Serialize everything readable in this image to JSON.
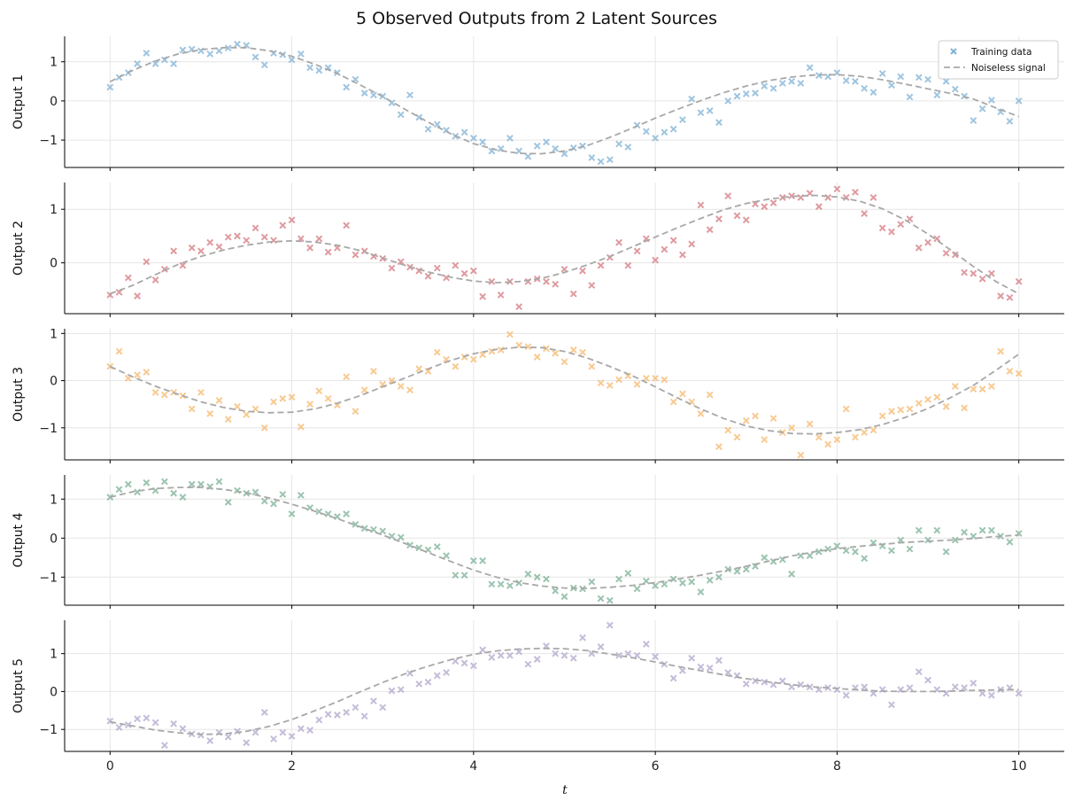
{
  "chart_data": {
    "type": "scatter",
    "title": "5 Observed Outputs from 2 Latent Sources",
    "xlabel": "t",
    "xlim": [
      -0.5,
      10.5
    ],
    "xticks": [
      0,
      2,
      4,
      6,
      8,
      10
    ],
    "grid": true,
    "legend": {
      "location": "top-right",
      "entries": [
        "Training data",
        "Noiseless signal"
      ]
    },
    "x_train": [
      0,
      0.1,
      0.2,
      0.3,
      0.4,
      0.5,
      0.6,
      0.7,
      0.8,
      0.9,
      1,
      1.1,
      1.2,
      1.3,
      1.4,
      1.5,
      1.6,
      1.7,
      1.8,
      1.9,
      2,
      2.1,
      2.2,
      2.3,
      2.4,
      2.5,
      2.6,
      2.7,
      2.8,
      2.9,
      3,
      3.1,
      3.2,
      3.3,
      3.4,
      3.5,
      3.6,
      3.7,
      3.8,
      3.9,
      4,
      4.1,
      4.2,
      4.3,
      4.4,
      4.5,
      4.6,
      4.7,
      4.8,
      4.9,
      5,
      5.1,
      5.2,
      5.3,
      5.4,
      5.5,
      5.6,
      5.7,
      5.8,
      5.9,
      6,
      6.1,
      6.2,
      6.3,
      6.4,
      6.5,
      6.6,
      6.7,
      6.8,
      6.9,
      7,
      7.1,
      7.2,
      7.3,
      7.4,
      7.5,
      7.6,
      7.7,
      7.8,
      7.9,
      8,
      8.1,
      8.2,
      8.3,
      8.4,
      8.5,
      8.6,
      8.7,
      8.8,
      8.9,
      9,
      9.1,
      9.2,
      9.3,
      9.4,
      9.5,
      9.6,
      9.7,
      9.8,
      9.9,
      10
    ],
    "x_signal": [
      0,
      0.25,
      0.5,
      0.75,
      1,
      1.25,
      1.5,
      1.75,
      2,
      2.25,
      2.5,
      2.75,
      3,
      3.25,
      3.5,
      3.75,
      4,
      4.25,
      4.5,
      4.75,
      5,
      5.25,
      5.5,
      5.75,
      6,
      6.25,
      6.5,
      6.75,
      7,
      7.25,
      7.5,
      7.75,
      8,
      8.25,
      8.5,
      8.75,
      9,
      9.25,
      9.5,
      9.75,
      10
    ],
    "series": [
      {
        "name": "Output 1",
        "color": "#7fb2d5",
        "ylim": [
          -1.7,
          1.65
        ],
        "yticks": [
          -1,
          0,
          1
        ],
        "observed": [
          0.35,
          0.6,
          0.72,
          0.95,
          1.22,
          0.95,
          1.05,
          0.95,
          1.3,
          1.32,
          1.28,
          1.2,
          1.28,
          1.35,
          1.45,
          1.42,
          1.12,
          0.92,
          1.22,
          1.18,
          1.05,
          1.2,
          0.85,
          0.78,
          0.85,
          0.72,
          0.35,
          0.55,
          0.2,
          0.15,
          0.12,
          -0.05,
          -0.35,
          0.15,
          -0.42,
          -0.72,
          -0.6,
          -0.75,
          -0.9,
          -0.8,
          -0.95,
          -1.05,
          -1.28,
          -1.22,
          -0.95,
          -1.28,
          -1.42,
          -1.15,
          -1.05,
          -1.22,
          -1.35,
          -1.2,
          -1.15,
          -1.45,
          -1.55,
          -1.5,
          -1.1,
          -1.18,
          -0.62,
          -0.78,
          -0.95,
          -0.8,
          -0.72,
          -0.48,
          0.05,
          -0.3,
          -0.25,
          -0.55,
          0,
          0.12,
          0.18,
          0.2,
          0.38,
          0.32,
          0.45,
          0.5,
          0.45,
          0.85,
          0.65,
          0.62,
          0.72,
          0.52,
          0.5,
          0.32,
          0.22,
          0.7,
          0.4,
          0.62,
          0.1,
          0.6,
          0.55,
          0.15,
          0.5,
          0.3,
          0.12,
          -0.5,
          -0.2,
          0.02,
          -0.28,
          -0.52,
          0
        ],
        "signal": [
          0.49,
          0.78,
          1.02,
          1.2,
          1.31,
          1.36,
          1.36,
          1.28,
          1.14,
          0.94,
          0.7,
          0.41,
          0.11,
          -0.22,
          -0.54,
          -0.84,
          -1.09,
          -1.25,
          -1.34,
          -1.35,
          -1.28,
          -1.14,
          -0.93,
          -0.69,
          -0.44,
          -0.21,
          0.01,
          0.21,
          0.38,
          0.52,
          0.61,
          0.66,
          0.67,
          0.63,
          0.54,
          0.43,
          0.31,
          0.19,
          0.05,
          -0.18,
          -0.4
        ]
      },
      {
        "name": "Output 2",
        "color": "#d47a80",
        "ylim": [
          -0.95,
          1.5
        ],
        "yticks": [
          0,
          1
        ],
        "observed": [
          -0.6,
          -0.55,
          -0.28,
          -0.62,
          0.02,
          -0.32,
          -0.12,
          0.22,
          -0.05,
          0.28,
          0.22,
          0.38,
          0.3,
          0.48,
          0.5,
          0.42,
          0.65,
          0.48,
          0.42,
          0.7,
          0.8,
          0.45,
          0.28,
          0.45,
          0.2,
          0.28,
          0.7,
          0.15,
          0.22,
          0.12,
          0.08,
          -0.1,
          0.02,
          -0.08,
          -0.15,
          -0.25,
          -0.1,
          -0.28,
          -0.05,
          -0.2,
          -0.15,
          -0.63,
          -0.35,
          -0.6,
          -0.35,
          -0.82,
          -0.35,
          -0.3,
          -0.35,
          -0.4,
          -0.12,
          -0.58,
          -0.15,
          -0.42,
          -0.05,
          0.1,
          0.38,
          -0.05,
          0.22,
          0.45,
          0.05,
          0.25,
          0.42,
          0.15,
          0.35,
          1.08,
          0.62,
          0.82,
          1.25,
          0.88,
          0.8,
          1.1,
          1.05,
          1.12,
          1.22,
          1.25,
          1.22,
          1.3,
          1.05,
          1.22,
          1.38,
          1.22,
          1.32,
          0.92,
          1.22,
          0.65,
          0.58,
          0.72,
          0.82,
          0.28,
          0.38,
          0.45,
          0.18,
          0.15,
          -0.18,
          -0.2,
          -0.3,
          -0.2,
          -0.62,
          -0.65,
          -0.35
        ],
        "signal": [
          -0.58,
          -0.42,
          -0.22,
          -0.03,
          0.12,
          0.24,
          0.33,
          0.39,
          0.41,
          0.39,
          0.33,
          0.23,
          0.09,
          -0.05,
          -0.17,
          -0.27,
          -0.34,
          -0.37,
          -0.35,
          -0.29,
          -0.18,
          -0.04,
          0.12,
          0.3,
          0.48,
          0.66,
          0.83,
          0.99,
          1.11,
          1.19,
          1.24,
          1.26,
          1.23,
          1.15,
          1.01,
          0.8,
          0.54,
          0.24,
          -0.07,
          -0.35,
          -0.58
        ]
      },
      {
        "name": "Output 3",
        "color": "#f5b86e",
        "ylim": [
          -1.68,
          1.1
        ],
        "yticks": [
          -1,
          0,
          1
        ],
        "observed": [
          0.3,
          0.62,
          0.05,
          0.12,
          0.18,
          -0.25,
          -0.3,
          -0.25,
          -0.32,
          -0.6,
          -0.25,
          -0.7,
          -0.42,
          -0.82,
          -0.55,
          -0.72,
          -0.6,
          -1.0,
          -0.45,
          -0.38,
          -0.35,
          -0.98,
          -0.5,
          -0.22,
          -0.38,
          -0.52,
          0.08,
          -0.65,
          -0.2,
          0.2,
          -0.08,
          0,
          -0.12,
          -0.2,
          0.25,
          0.2,
          0.6,
          0.45,
          0.3,
          0.5,
          0.45,
          0.55,
          0.62,
          0.65,
          0.98,
          0.75,
          0.72,
          0.5,
          0.68,
          0.58,
          0.4,
          0.65,
          0.6,
          0.3,
          -0.05,
          -0.1,
          0.02,
          0.1,
          -0.08,
          0.05,
          0.05,
          0.02,
          -0.45,
          -0.28,
          -0.45,
          -0.7,
          -0.3,
          -1.4,
          -1.05,
          -1.2,
          -0.85,
          -0.75,
          -1.25,
          -0.8,
          -1.1,
          -1.0,
          -1.58,
          -0.92,
          -1.2,
          -1.35,
          -1.25,
          -0.6,
          -1.2,
          -1.1,
          -1.05,
          -0.75,
          -0.65,
          -0.62,
          -0.6,
          -0.48,
          -0.4,
          -0.35,
          -0.55,
          -0.12,
          -0.58,
          -0.18,
          -0.18,
          -0.12,
          0.62,
          0.2,
          0.15
        ],
        "signal": [
          0.3,
          0.08,
          -0.12,
          -0.29,
          -0.45,
          -0.57,
          -0.65,
          -0.68,
          -0.67,
          -0.6,
          -0.48,
          -0.32,
          -0.13,
          0.06,
          0.25,
          0.43,
          0.57,
          0.66,
          0.71,
          0.7,
          0.62,
          0.48,
          0.3,
          0.1,
          -0.13,
          -0.37,
          -0.6,
          -0.8,
          -0.96,
          -1.06,
          -1.12,
          -1.13,
          -1.1,
          -1.04,
          -0.93,
          -0.78,
          -0.59,
          -0.36,
          -0.1,
          0.22,
          0.56
        ]
      },
      {
        "name": "Output 4",
        "color": "#7bb094",
        "ylim": [
          -1.72,
          1.62
        ],
        "yticks": [
          -1,
          0,
          1
        ],
        "observed": [
          1.05,
          1.25,
          1.38,
          1.18,
          1.42,
          1.22,
          1.45,
          1.15,
          1.05,
          1.38,
          1.38,
          1.32,
          1.45,
          0.92,
          1.22,
          1.15,
          1.18,
          0.95,
          0.88,
          1.12,
          0.62,
          1.1,
          0.78,
          0.68,
          0.62,
          0.55,
          0.62,
          0.35,
          0.25,
          0.22,
          0.18,
          0.05,
          0.02,
          -0.18,
          -0.25,
          -0.3,
          -0.22,
          -0.45,
          -0.95,
          -0.95,
          -0.58,
          -0.58,
          -1.18,
          -1.18,
          -1.22,
          -1.15,
          -0.92,
          -1.0,
          -1.05,
          -1.35,
          -1.5,
          -1.28,
          -1.3,
          -1.12,
          -1.55,
          -1.6,
          -1.05,
          -0.9,
          -1.3,
          -1.1,
          -1.22,
          -1.18,
          -1.05,
          -1.15,
          -1.12,
          -1.38,
          -1.08,
          -1.0,
          -0.8,
          -0.85,
          -0.8,
          -0.72,
          -0.5,
          -0.6,
          -0.55,
          -0.92,
          -0.45,
          -0.45,
          -0.35,
          -0.28,
          -0.2,
          -0.32,
          -0.35,
          -0.52,
          -0.12,
          -0.2,
          -0.32,
          -0.05,
          -0.28,
          0.2,
          -0.05,
          0.2,
          -0.35,
          -0.05,
          0.15,
          0.05,
          0.2,
          0.2,
          0.05,
          -0.1,
          0.12
        ],
        "signal": [
          1.05,
          1.19,
          1.27,
          1.3,
          1.3,
          1.25,
          1.16,
          1.03,
          0.87,
          0.69,
          0.5,
          0.29,
          0.08,
          -0.14,
          -0.37,
          -0.6,
          -0.82,
          -1.0,
          -1.14,
          -1.23,
          -1.28,
          -1.29,
          -1.26,
          -1.21,
          -1.14,
          -1.05,
          -0.95,
          -0.84,
          -0.72,
          -0.59,
          -0.46,
          -0.35,
          -0.27,
          -0.21,
          -0.16,
          -0.11,
          -0.08,
          -0.05,
          -0.01,
          0.04,
          0.08
        ]
      },
      {
        "name": "Output 5",
        "color": "#b2a6cc",
        "ylim": [
          -1.58,
          1.88
        ],
        "yticks": [
          -1,
          0,
          1
        ],
        "observed": [
          -0.78,
          -0.95,
          -0.88,
          -0.72,
          -0.7,
          -0.82,
          -1.42,
          -0.85,
          -0.98,
          -1.12,
          -1.15,
          -1.3,
          -1.08,
          -1.2,
          -1.05,
          -1.35,
          -1.08,
          -0.55,
          -1.25,
          -1.08,
          -1.18,
          -0.98,
          -1.02,
          -0.75,
          -0.6,
          -0.62,
          -0.55,
          -0.42,
          -0.65,
          -0.25,
          -0.42,
          0.02,
          0.05,
          0.48,
          0.2,
          0.25,
          0.42,
          0.5,
          0.8,
          0.75,
          0.68,
          1.1,
          0.9,
          0.95,
          0.95,
          1.05,
          0.72,
          0.85,
          1.2,
          1.0,
          0.95,
          0.88,
          1.42,
          1.0,
          1.18,
          1.75,
          0.95,
          1.0,
          0.95,
          1.25,
          0.92,
          0.72,
          0.35,
          0.55,
          0.88,
          0.65,
          0.62,
          0.82,
          0.5,
          0.42,
          0.2,
          0.28,
          0.25,
          0.18,
          0.28,
          0.12,
          0.18,
          0.12,
          0.05,
          0.1,
          0.05,
          -0.1,
          0.1,
          0.12,
          -0.05,
          0.05,
          -0.35,
          0.05,
          0.1,
          0.52,
          0.3,
          0.05,
          -0.05,
          0.12,
          0.1,
          0.22,
          -0.05,
          -0.1,
          0.05,
          0.1,
          -0.05
        ],
        "signal": [
          -0.8,
          -0.91,
          -1.02,
          -1.09,
          -1.13,
          -1.12,
          -1.05,
          -0.92,
          -0.74,
          -0.51,
          -0.27,
          -0.01,
          0.24,
          0.47,
          0.67,
          0.84,
          0.98,
          1.07,
          1.12,
          1.14,
          1.13,
          1.08,
          0.99,
          0.89,
          0.78,
          0.66,
          0.55,
          0.44,
          0.34,
          0.25,
          0.18,
          0.12,
          0.08,
          0.04,
          0.01,
          0,
          0,
          0.01,
          0.03,
          0.04,
          0.05
        ]
      }
    ]
  }
}
